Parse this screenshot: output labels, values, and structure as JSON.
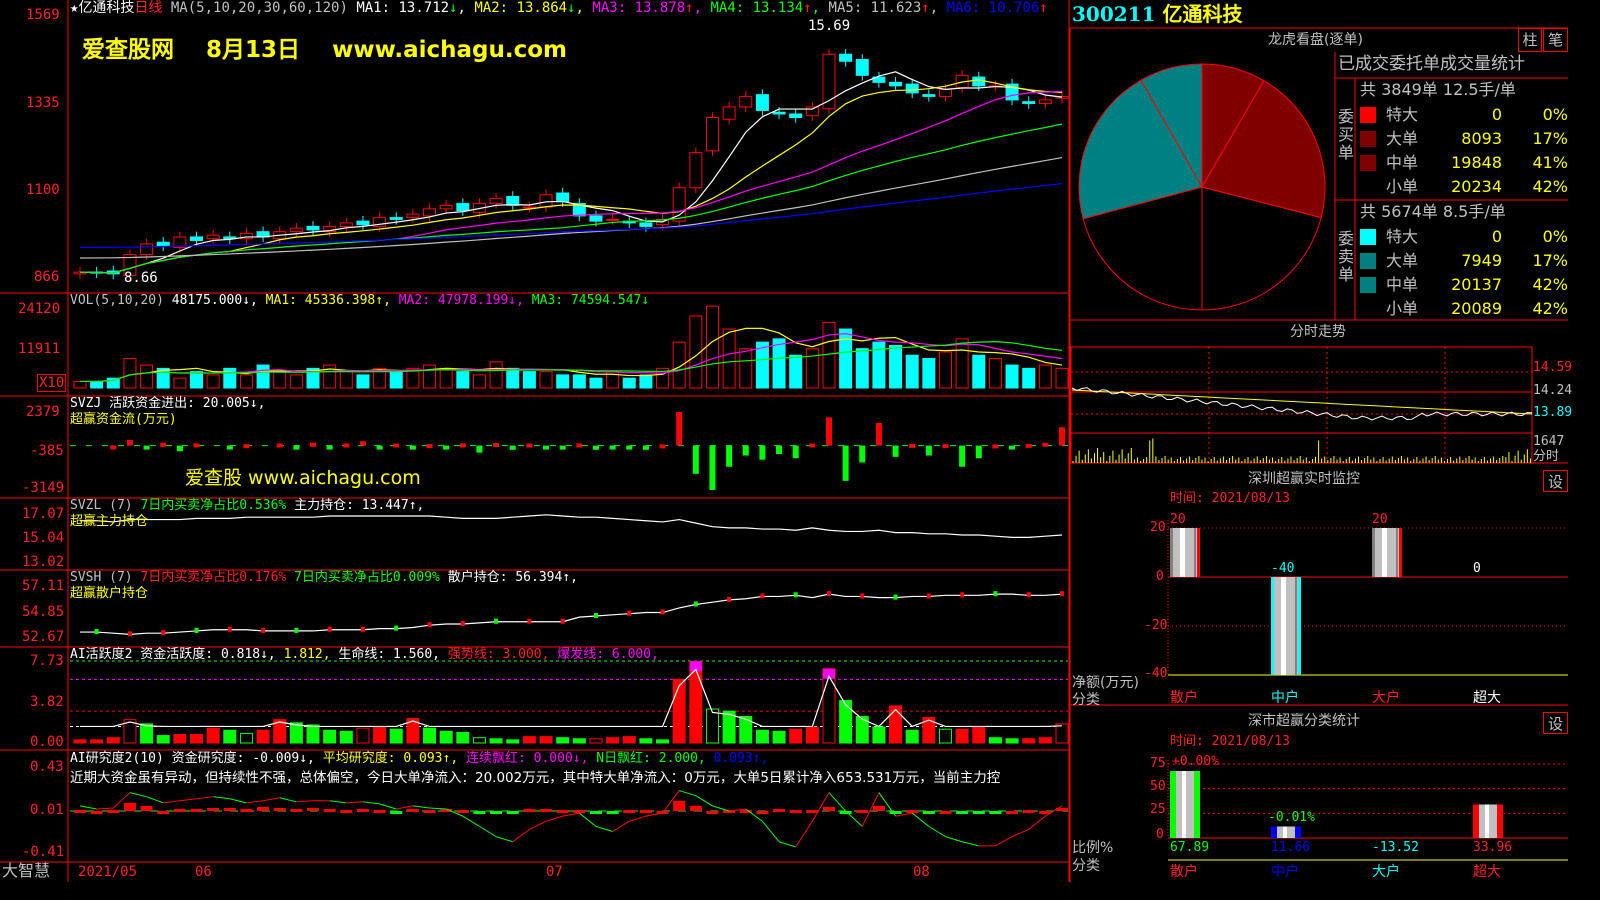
{
  "header": {
    "stock_name": "亿通科技",
    "period": "日线",
    "ma_label": "MA(5,10,20,30,60,120)",
    "ma": [
      {
        "name": "MA1",
        "value": "13.712",
        "arrow": "↓"
      },
      {
        "name": "MA2",
        "value": "13.864",
        "arrow": "↓"
      },
      {
        "name": "MA3",
        "value": "13.878",
        "arrow": "↑"
      },
      {
        "name": "MA4",
        "value": "13.134",
        "arrow": "↑"
      },
      {
        "name": "MA5",
        "value": "11.623",
        "arrow": "↑"
      },
      {
        "name": "MA6",
        "value": "10.706",
        "arrow": "↑"
      }
    ],
    "watermark": "爱查股网    8月13日    www.aichagu.com",
    "high_label": "15.69",
    "low_label": "8.66"
  },
  "colors": {
    "up": "#ff0000",
    "down": "#00ffff",
    "ma1": "#ffffff",
    "ma2": "#ffff00",
    "ma3": "#ff00ff",
    "ma4": "#00ff00",
    "ma5": "#c0c0c0",
    "ma6": "#0000ff",
    "buy": "#800000",
    "sell": "#008080"
  },
  "axes": {
    "main": [
      "1569",
      "1335",
      "1100",
      "866"
    ],
    "vol": [
      "24120",
      "11911"
    ],
    "vol_unit": "X10",
    "svzj": [
      "2379",
      "-385",
      "-3149"
    ],
    "svzl": [
      "17.07",
      "15.04",
      "13.02"
    ],
    "svsh": [
      "57.11",
      "54.85",
      "52.67"
    ],
    "ai1": [
      "7.73",
      "3.82",
      "0.00"
    ],
    "ai2": [
      "0.43",
      "0.01",
      "-0.41"
    ],
    "dates": [
      "2021/05",
      "06",
      "07",
      "08"
    ],
    "brand": "大智慧"
  },
  "volume": {
    "label": "VOL(5,10,20)",
    "value": "48175.000↓,",
    "ma1": "MA1: 45336.398↑,",
    "ma2": "MA2: 47978.199↓,",
    "ma3": "MA3: 74594.547↓"
  },
  "svzj": {
    "label": "SVZJ  活跃资金进出: 20.005↓,",
    "sub": "超赢资金流(万元)",
    "watermark": "爱查股 www.aichagu.com"
  },
  "svzl": {
    "label": "SVZL (7)",
    "ratio": "7日内买卖净占比0.536%",
    "hold": "主力持仓: 13.447↑,",
    "sub": "超赢主力持仓"
  },
  "svsh": {
    "label": "SVSH (7)",
    "ratio1": "7日内买卖净占比0.176%",
    "ratio2": "7日内买卖净占比0.009%",
    "hold": "散户持仓: 56.394↑,",
    "sub": "超赢散户持仓"
  },
  "ai1": {
    "label": "AI活跃度2 资金活跃度: 0.818↓,",
    "v2": "1.812,",
    "life": "生命线: 1.560,",
    "strong": "强势线: 3.000,",
    "burst": "爆发线: 6.000,"
  },
  "ai2": {
    "label": "AI研究度2(10) 资金研究度: -0.009↓,",
    "avg": "平均研究度: 0.093↑,",
    "cont": "连续飘红: 0.000↓,",
    "nday": "N日飘红: 2.000,",
    "v5": "0.093↑,",
    "comment": "近期大资金虽有异动，但持续性不强，总体偏空，今日大单净流入：20.002万元，其中特大单净流入：0万元，大单5日累计净入653.531万元，当前主力控"
  },
  "chart_data": {
    "type": "candlestick",
    "close": [
      8.8,
      8.78,
      8.75,
      9.3,
      9.6,
      9.55,
      9.8,
      9.7,
      9.85,
      9.75,
      9.9,
      9.8,
      9.95,
      10.05,
      10.0,
      10.1,
      10.2,
      10.15,
      10.35,
      10.3,
      10.45,
      10.6,
      10.7,
      10.55,
      10.75,
      10.9,
      10.7,
      10.65,
      11.0,
      10.8,
      10.4,
      10.25,
      10.3,
      10.2,
      10.1,
      10.3,
      11.2,
      12.2,
      13.2,
      13.5,
      13.8,
      13.4,
      13.3,
      13.2,
      13.5,
      15.0,
      14.8,
      14.4,
      14.2,
      14.1,
      13.9,
      13.8,
      14.0,
      14.4,
      14.1,
      14.1,
      13.7,
      13.6,
      13.7,
      13.8
    ],
    "volume": [
      2000,
      2000,
      3000,
      9000,
      7000,
      6000,
      3000,
      5000,
      4000,
      6000,
      4000,
      7000,
      5000,
      4000,
      6000,
      7000,
      5000,
      4000,
      6000,
      5000,
      6000,
      7000,
      6000,
      5000,
      4000,
      8000,
      6000,
      5000,
      5000,
      4000,
      4000,
      3000,
      5000,
      3000,
      4000,
      6000,
      14000,
      22000,
      25000,
      18000,
      12000,
      14000,
      15000,
      10000,
      12000,
      20000,
      18000,
      12000,
      14000,
      13000,
      10000,
      9000,
      11000,
      15000,
      10000,
      9000,
      7000,
      6000,
      7000,
      6000
    ],
    "svzj": [
      0,
      0,
      10,
      400,
      -100,
      200,
      -400,
      150,
      0,
      -200,
      100,
      0,
      150,
      -100,
      200,
      -150,
      150,
      300,
      -80,
      150,
      -200,
      100,
      -200,
      150,
      -500,
      180,
      -300,
      150,
      -200,
      -100,
      150,
      -300,
      -150,
      -100,
      -300,
      80,
      2379,
      -2000,
      -3149,
      -1500,
      -700,
      -1000,
      -600,
      -900,
      150,
      2000,
      -2500,
      -1200,
      1600,
      -800,
      120,
      -700,
      100,
      -1500,
      -900,
      80,
      -150,
      120,
      200,
      1300
    ],
    "svzl": [
      16.5,
      16.5,
      16.4,
      16.6,
      16.6,
      16.6,
      16.6,
      16.7,
      16.7,
      16.7,
      16.8,
      16.8,
      16.8,
      16.8,
      16.8,
      16.9,
      16.9,
      16.9,
      16.9,
      16.9,
      16.9,
      16.9,
      16.8,
      16.7,
      16.7,
      16.7,
      16.8,
      16.9,
      17.0,
      16.9,
      16.8,
      16.8,
      16.7,
      16.6,
      16.5,
      16.4,
      16.6,
      16.3,
      16.0,
      15.9,
      15.9,
      15.8,
      15.8,
      15.7,
      15.9,
      15.7,
      15.6,
      15.6,
      15.7,
      15.5,
      15.5,
      15.4,
      15.4,
      15.3,
      15.3,
      15.2,
      15.1,
      15.1,
      15.2,
      15.3
    ],
    "svsh": [
      53.1,
      53.1,
      53.0,
      52.9,
      53.0,
      53.0,
      53.1,
      53.2,
      53.3,
      53.3,
      53.3,
      53.2,
      53.2,
      53.2,
      53.2,
      53.3,
      53.3,
      53.3,
      53.4,
      53.4,
      53.5,
      53.7,
      53.8,
      53.8,
      53.9,
      54.0,
      54.0,
      54.0,
      54.0,
      54.0,
      54.4,
      54.5,
      54.6,
      54.7,
      54.8,
      54.8,
      55.2,
      55.5,
      55.7,
      55.9,
      56.0,
      56.2,
      56.2,
      56.3,
      56.1,
      56.4,
      56.2,
      56.2,
      56.1,
      56.1,
      56.2,
      56.2,
      56.3,
      56.3,
      56.3,
      56.4,
      56.4,
      56.3,
      56.3,
      56.4
    ],
    "ai1": [
      0.3,
      0.3,
      0.5,
      2.2,
      1.8,
      0.7,
      0.8,
      0.8,
      1.4,
      1.2,
      0.9,
      1.2,
      2.2,
      1.9,
      1.7,
      1.2,
      1.1,
      1.4,
      1.5,
      1.3,
      2.3,
      1.4,
      1.1,
      1.0,
      0.5,
      0.4,
      0.3,
      0.6,
      0.6,
      0.5,
      0.4,
      0.4,
      0.5,
      0.6,
      0.4,
      0.3,
      6.0,
      7.7,
      3.2,
      3.0,
      2.5,
      1.2,
      1.1,
      1.3,
      1.5,
      7.0,
      4.0,
      2.5,
      1.5,
      3.5,
      1.2,
      2.4,
      1.3,
      1.3,
      1.5,
      0.5,
      0.4,
      0.4,
      0.5,
      1.8
    ],
    "ai2": [
      0.01,
      0.0,
      0.01,
      0.08,
      0.05,
      0.0,
      0.02,
      0.02,
      0.03,
      0.03,
      0.02,
      0.04,
      0.03,
      0.02,
      0.03,
      0.02,
      0.01,
      0.02,
      0.01,
      -0.01,
      0.02,
      0.01,
      0.02,
      0.01,
      -0.03,
      -0.02,
      -0.02,
      0.02,
      0.02,
      0.01,
      0.01,
      -0.01,
      -0.01,
      0.01,
      0.01,
      0.0,
      0.1,
      0.05,
      0.0,
      0.01,
      0.01,
      0.0,
      0.02,
      0.01,
      0.01,
      0.04,
      -0.02,
      0.01,
      0.05,
      -0.01,
      0.01,
      -0.01,
      0.0,
      -0.02,
      -0.01,
      -0.01,
      0.0,
      0.01,
      0.0,
      0.03
    ],
    "ai2_line": [
      0.05,
      0.02,
      0.03,
      0.18,
      0.14,
      0.08,
      0.1,
      0.12,
      0.14,
      0.12,
      0.08,
      0.1,
      0.13,
      0.09,
      0.1,
      0.1,
      0.08,
      0.09,
      0.07,
      0.02,
      0.05,
      0.03,
      0.02,
      -0.05,
      -0.15,
      -0.25,
      -0.3,
      -0.18,
      -0.1,
      -0.05,
      -0.02,
      -0.15,
      -0.2,
      -0.1,
      -0.05,
      -0.02,
      0.2,
      0.15,
      0.05,
      0.0,
      0.02,
      -0.1,
      -0.3,
      -0.35,
      -0.1,
      0.18,
      0.0,
      -0.15,
      0.18,
      -0.05,
      -0.02,
      -0.15,
      -0.25,
      -0.3,
      -0.34,
      -0.34,
      -0.25,
      -0.18,
      -0.05,
      0.05
    ]
  },
  "right": {
    "code": "300211",
    "name": "亿通科技",
    "lhkp_title": "龙虎看盘(逐单)",
    "btn_bar": "柱",
    "btn_pen": "笔",
    "stats_title": "已成交委托单成交量统计",
    "buy": {
      "side": "委买单",
      "summary": "共 3849单 12.5手/单",
      "rows": [
        {
          "label": "特大",
          "value": "0",
          "pct": "0%",
          "color": "#ff0000"
        },
        {
          "label": "大单",
          "value": "8093",
          "pct": "17%",
          "color": "#800000"
        },
        {
          "label": "中单",
          "value": "19848",
          "pct": "41%",
          "color": "#800000"
        },
        {
          "label": "小单",
          "value": "20234",
          "pct": "42%",
          "color": ""
        }
      ]
    },
    "sell": {
      "side": "委卖单",
      "summary": "共 5674单 8.5手/单",
      "rows": [
        {
          "label": "特大",
          "value": "0",
          "pct": "0%",
          "color": "#00ffff"
        },
        {
          "label": "大单",
          "value": "7949",
          "pct": "17%",
          "color": "#008080"
        },
        {
          "label": "中单",
          "value": "20137",
          "pct": "42%",
          "color": "#008080"
        },
        {
          "label": "小单",
          "value": "20089",
          "pct": "42%",
          "color": ""
        }
      ]
    },
    "intraday": {
      "title": "分时走势",
      "prices": [
        "14.59",
        "14.24",
        "13.89"
      ],
      "vol_label": "1647",
      "unit_label": "分时"
    },
    "monitor": {
      "title": "深圳超赢实时监控",
      "time": "时间: 2021/08/13",
      "yticks": [
        "20",
        "0",
        "-20",
        "-40"
      ],
      "ylabel": "净额(万元)",
      "xlabel": "分类",
      "btn": "设",
      "bars": [
        {
          "cat": "散户",
          "value": 20,
          "label": "20"
        },
        {
          "cat": "中户",
          "value": -40,
          "label": "-40"
        },
        {
          "cat": "大户",
          "value": 20,
          "label": "20"
        },
        {
          "cat": "超大",
          "value": 0,
          "label": "0"
        }
      ]
    },
    "classify": {
      "title": "深市超赢分类统计",
      "time": "时间: 2021/08/13",
      "yticks": [
        "75",
        "50",
        "25",
        "0"
      ],
      "ylabel": "比例%",
      "xlabel": "分类",
      "btn": "设",
      "top_pct": "+0.00%",
      "mid_pct": "-0.01%",
      "bars": [
        {
          "cat": "散户",
          "value": 67.89,
          "label": "67.89"
        },
        {
          "cat": "中户",
          "value": 11.66,
          "label": "11.66"
        },
        {
          "cat": "大户",
          "value": -13.52,
          "label": "-13.52"
        },
        {
          "cat": "超大",
          "value": 33.96,
          "label": "33.96"
        }
      ]
    }
  }
}
